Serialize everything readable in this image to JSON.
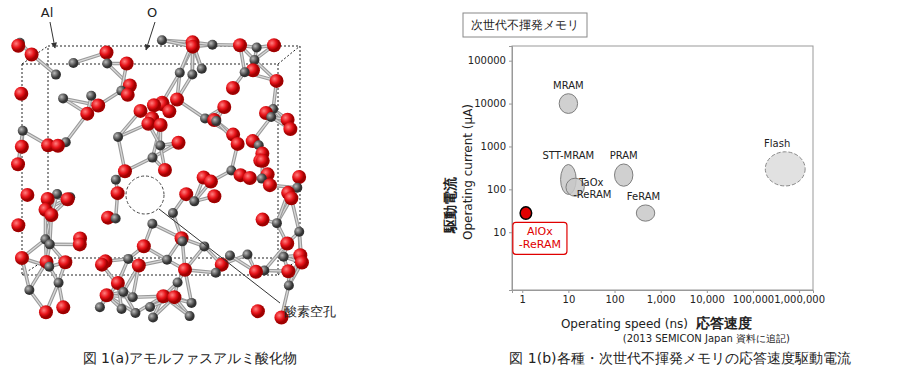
{
  "chart_data": {
    "type": "scatter",
    "title": "次世代不揮発メモリ",
    "x_label": "Operating speed (ns)",
    "x_label_ja": "応答速度",
    "y_label": "Operating current (μA)",
    "y_label_ja": "駆動電流",
    "note": "(2013 SEMICON Japan 資料に追記)",
    "caption": "図 1(b)各種・次世代不揮発メモリの応答速度駆動電流",
    "log": true,
    "grid": false,
    "marker": "ellipse",
    "xlim": [
      0.6,
      2000000
    ],
    "xticks": [
      1,
      10,
      100,
      {
        "value": 1000,
        "label": "1,000"
      },
      {
        "value": 10000,
        "label": "10,000"
      },
      {
        "value": 100000,
        "label": "100,000"
      },
      {
        "value": 1000000,
        "label": "1,000,000"
      }
    ],
    "ylim": [
      0.45,
      220000
    ],
    "yticks": [
      10,
      100,
      1000,
      10000,
      100000
    ],
    "series": [
      {
        "name": "MRAM",
        "color": "#c8c8c8",
        "x": [
          10
        ],
        "values": [
          10000
        ],
        "x_min": [
          6.3
        ],
        "x_max": [
          15.8
        ],
        "y_min": [
          5900
        ],
        "y_max": [
          17000
        ]
      },
      {
        "name": "STT-MRAM",
        "color": "#c8c8c8",
        "x": [
          10
        ],
        "values": [
          170
        ],
        "x_min": [
          6.8
        ],
        "x_max": [
          14.8
        ],
        "y_min": [
          76
        ],
        "y_max": [
          380
        ]
      },
      {
        "name": "TaOx\n-ReRAM",
        "color": "#c8c8c8",
        "x": [
          14
        ],
        "values": [
          112
        ],
        "x_min": [
          8.8
        ],
        "x_max": [
          22
        ],
        "y_min": [
          69
        ],
        "y_max": [
          182
        ]
      },
      {
        "name": "PRAM",
        "color": "#c8c8c8",
        "x": [
          158
        ],
        "values": [
          215
        ],
        "x_min": [
          100
        ],
        "x_max": [
          250
        ],
        "y_min": [
          118
        ],
        "y_max": [
          390
        ]
      },
      {
        "name": "FeRAM",
        "color": "#c8c8c8",
        "x": [
          470
        ],
        "values": [
          28
        ],
        "x_min": [
          297
        ],
        "x_max": [
          745
        ],
        "y_min": [
          18
        ],
        "y_max": [
          43
        ]
      },
      {
        "name": "Flash",
        "color": "#dcdcdc",
        "line_style": "dashed",
        "x": [
          500000
        ],
        "values": [
          300
        ],
        "x_min": [
          185000
        ],
        "x_max": [
          1350000
        ],
        "y_min": [
          120
        ],
        "y_max": [
          750
        ]
      },
      {
        "name": "AlOx\n-ReRAM",
        "color": "#e00000",
        "x": [
          1.2
        ],
        "values": [
          28
        ],
        "x_min": [
          0.9
        ],
        "x_max": [
          1.6
        ],
        "y_min": [
          20
        ],
        "y_max": [
          39
        ]
      }
    ]
  },
  "diagram": {
    "atom_labels": [
      "Al",
      "O"
    ],
    "vacancy_label": "酸素空孔",
    "caption": "図 1(a)アモルファスアルミ酸化物"
  }
}
